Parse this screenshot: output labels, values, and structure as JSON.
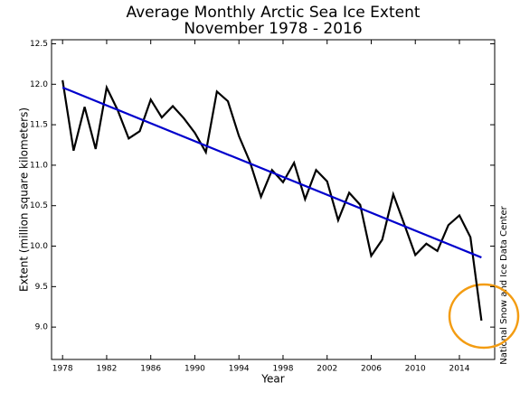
{
  "chart_data": {
    "type": "line",
    "title": "Average Monthly Arctic Sea Ice Extent",
    "subtitle": "November 1978 - 2016",
    "x_label": "Year",
    "y_label": "Extent (million square kilometers)",
    "source": "National Snow and Ice Data Center",
    "x": [
      1978,
      1979,
      1980,
      1981,
      1982,
      1983,
      1984,
      1985,
      1986,
      1987,
      1988,
      1989,
      1990,
      1991,
      1992,
      1993,
      1994,
      1995,
      1996,
      1997,
      1998,
      1999,
      2000,
      2001,
      2002,
      2003,
      2004,
      2005,
      2006,
      2007,
      2008,
      2009,
      2010,
      2011,
      2012,
      2013,
      2014,
      2015,
      2016
    ],
    "series": [
      {
        "color": "#000000",
        "values": [
          12.05,
          11.18,
          11.72,
          11.2,
          11.96,
          11.68,
          11.33,
          11.42,
          11.81,
          11.59,
          11.73,
          11.58,
          11.4,
          11.16,
          11.91,
          11.79,
          11.36,
          11.04,
          10.61,
          10.94,
          10.79,
          11.03,
          10.58,
          10.94,
          10.8,
          10.32,
          10.66,
          10.51,
          9.88,
          10.08,
          10.64,
          10.27,
          9.89,
          10.03,
          9.94,
          10.26,
          10.38,
          10.11,
          9.08
        ]
      },
      {
        "color": "#0000cc",
        "x": [
          1978,
          2016
        ],
        "values": [
          11.96,
          9.86
        ]
      }
    ],
    "xlim": [
      1977,
      2017.2
    ],
    "ylim": [
      8.6,
      12.55
    ],
    "xticks": [
      1978,
      1982,
      1986,
      1990,
      1994,
      1998,
      2002,
      2006,
      2010,
      2014
    ],
    "yticks": [
      {
        "value": 9,
        "label": "9.0"
      },
      9.5,
      {
        "value": 10,
        "label": "10.0"
      },
      10.5,
      {
        "value": 11,
        "label": "11.0"
      },
      11.5,
      {
        "value": 12,
        "label": "12.0"
      },
      12.5
    ],
    "grid": false
  }
}
